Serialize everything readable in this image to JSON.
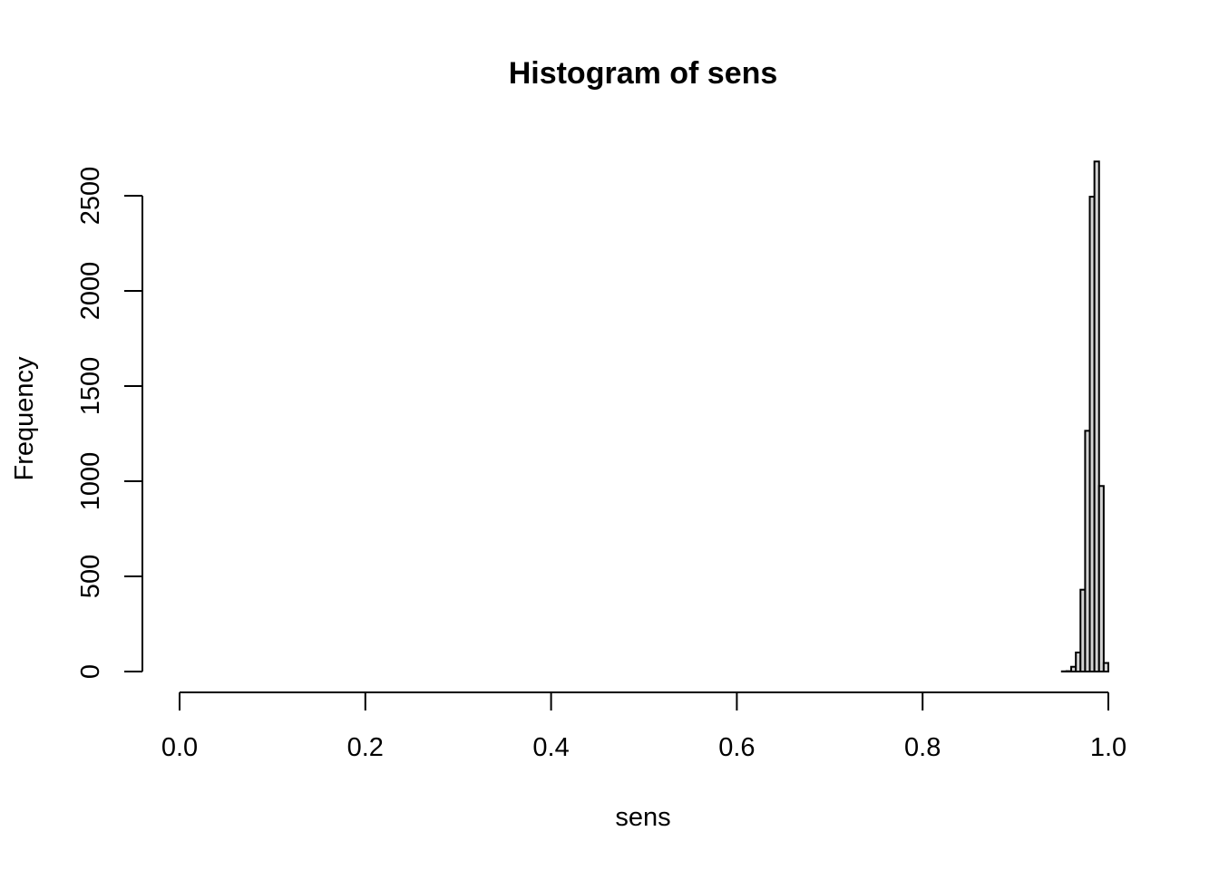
{
  "chart_data": {
    "type": "bar",
    "title": "Histogram of sens",
    "xlabel": "sens",
    "ylabel": "Frequency",
    "xlim": [
      0.0,
      1.0
    ],
    "ylim": [
      0,
      2500
    ],
    "x_ticks": [
      "0.0",
      "0.2",
      "0.4",
      "0.6",
      "0.8",
      "1.0"
    ],
    "y_ticks": [
      "0",
      "500",
      "1000",
      "1500",
      "2000",
      "2500"
    ],
    "bin_width": 0.005,
    "bins": [
      {
        "x0": 0.95,
        "x1": 0.955,
        "count": 1
      },
      {
        "x0": 0.955,
        "x1": 0.96,
        "count": 2
      },
      {
        "x0": 0.96,
        "x1": 0.965,
        "count": 25
      },
      {
        "x0": 0.965,
        "x1": 0.97,
        "count": 100
      },
      {
        "x0": 0.97,
        "x1": 0.975,
        "count": 430
      },
      {
        "x0": 0.975,
        "x1": 0.98,
        "count": 1265
      },
      {
        "x0": 0.98,
        "x1": 0.985,
        "count": 2495
      },
      {
        "x0": 0.985,
        "x1": 0.99,
        "count": 2680
      },
      {
        "x0": 0.99,
        "x1": 0.995,
        "count": 975
      },
      {
        "x0": 0.995,
        "x1": 1.0,
        "count": 45
      }
    ],
    "bar_color": "#d3d3d3",
    "grid": false,
    "legend": "none"
  }
}
